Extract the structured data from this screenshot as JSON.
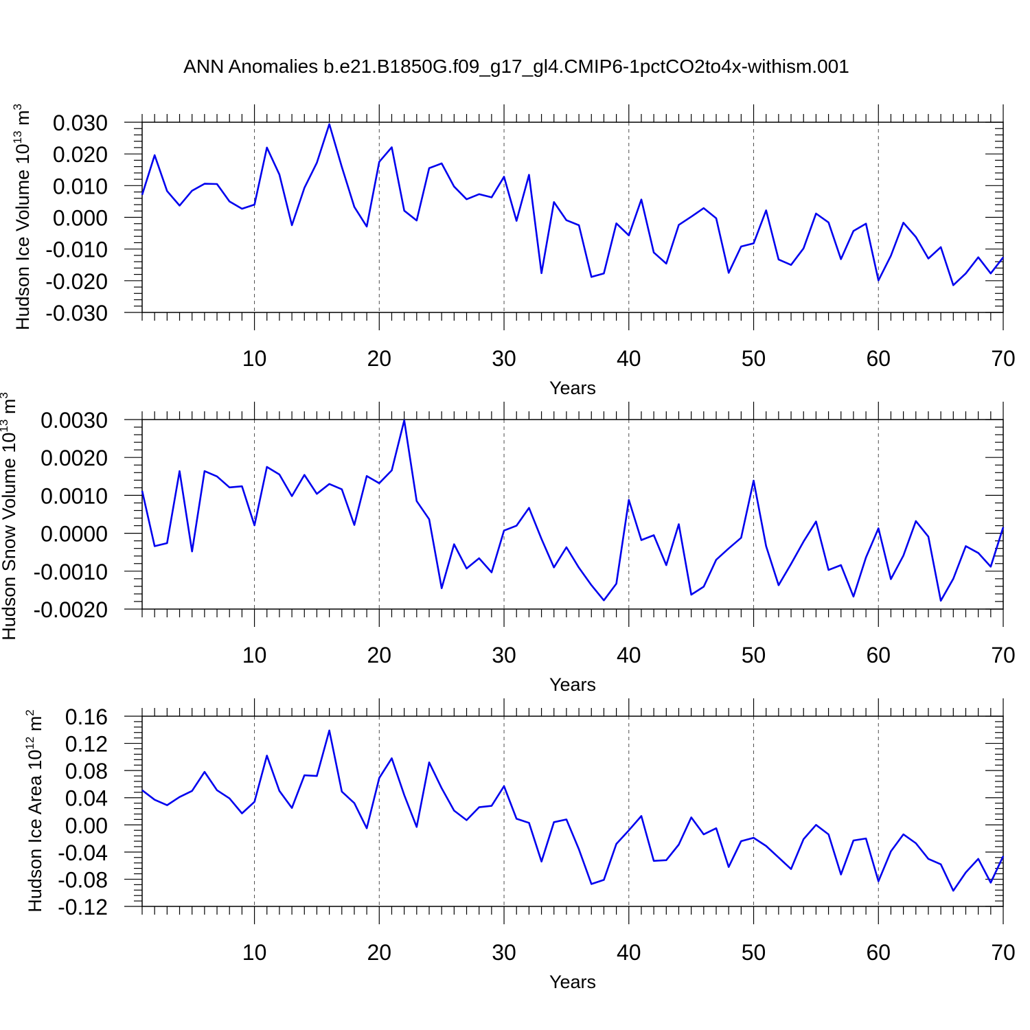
{
  "figure": {
    "title": "ANN Anomalies b.e21.B1850G.f09_g17_gl4.CMIP6-1pctCO2to4x-withism.001"
  },
  "chart_data": [
    {
      "type": "line",
      "xlabel": "Years",
      "ylabel": {
        "main": "Hudson Ice Volume 10",
        "exp": "13",
        "unit": " m",
        "unit_exp": "3"
      },
      "xlim": [
        1,
        70
      ],
      "ylim": [
        -0.03,
        0.03
      ],
      "xticks": [
        10,
        20,
        30,
        40,
        50,
        60,
        70
      ],
      "yticks": [
        0.03,
        0.02,
        0.01,
        0.0,
        -0.01,
        -0.02,
        -0.03
      ],
      "ytick_labels": [
        "0.030",
        "0.020",
        "0.010",
        "0.000",
        "-0.010",
        "-0.020",
        "-0.030"
      ],
      "grid": "vertical dashed at x ticks",
      "color": "#0000ee",
      "x": [
        1,
        2,
        3,
        4,
        5,
        6,
        7,
        8,
        9,
        10,
        11,
        12,
        13,
        14,
        15,
        16,
        17,
        18,
        19,
        20,
        21,
        22,
        23,
        24,
        25,
        26,
        27,
        28,
        29,
        30,
        31,
        32,
        33,
        34,
        35,
        36,
        37,
        38,
        39,
        40,
        41,
        42,
        43,
        44,
        45,
        46,
        47,
        48,
        49,
        50,
        51,
        52,
        53,
        54,
        55,
        56,
        57,
        58,
        59,
        60,
        61,
        62,
        63,
        64,
        65,
        66,
        67,
        68,
        69,
        70
      ],
      "values": [
        0.0071,
        0.0196,
        0.0083,
        0.0037,
        0.0084,
        0.0106,
        0.0105,
        0.005,
        0.0027,
        0.004,
        0.022,
        0.0135,
        -0.0025,
        0.0093,
        0.0172,
        0.0294,
        0.0159,
        0.0033,
        -0.0029,
        0.0175,
        0.0221,
        0.0021,
        -0.001,
        0.0155,
        0.017,
        0.0097,
        0.0057,
        0.0073,
        0.0063,
        0.0128,
        -0.0011,
        0.0134,
        -0.0176,
        0.0048,
        -0.0009,
        -0.0025,
        -0.0188,
        -0.0177,
        -0.0019,
        -0.0057,
        0.0056,
        -0.0111,
        -0.0146,
        -0.0024,
        0.0002,
        0.0029,
        -0.0003,
        -0.0175,
        -0.0092,
        -0.0082,
        0.0022,
        -0.0133,
        -0.015,
        -0.0098,
        0.0012,
        -0.0016,
        -0.0132,
        -0.0043,
        -0.002,
        -0.0199,
        -0.0121,
        -0.0017,
        -0.0062,
        -0.013,
        -0.0094,
        -0.0214,
        -0.0177,
        -0.0126,
        -0.0177,
        -0.0126
      ]
    },
    {
      "type": "line",
      "xlabel": "Years",
      "ylabel": {
        "main": "Hudson Snow Volume 10",
        "exp": "13",
        "unit": " m",
        "unit_exp": "3"
      },
      "xlim": [
        1,
        70
      ],
      "ylim": [
        -0.002,
        0.003
      ],
      "xticks": [
        10,
        20,
        30,
        40,
        50,
        60,
        70
      ],
      "yticks": [
        0.003,
        0.002,
        0.001,
        0.0,
        -0.001,
        -0.002
      ],
      "ytick_labels": [
        "0.0030",
        "0.0020",
        "0.0010",
        "0.0000",
        "-0.0010",
        "-0.0020"
      ],
      "grid": "vertical dashed at x ticks",
      "color": "#0000ee",
      "x": [
        1,
        2,
        3,
        4,
        5,
        6,
        7,
        8,
        9,
        10,
        11,
        12,
        13,
        14,
        15,
        16,
        17,
        18,
        19,
        20,
        21,
        22,
        23,
        24,
        25,
        26,
        27,
        28,
        29,
        30,
        31,
        32,
        33,
        34,
        35,
        36,
        37,
        38,
        39,
        40,
        41,
        42,
        43,
        44,
        45,
        46,
        47,
        48,
        49,
        50,
        51,
        52,
        53,
        54,
        55,
        56,
        57,
        58,
        59,
        60,
        61,
        62,
        63,
        64,
        65,
        66,
        67,
        68,
        69,
        70
      ],
      "values": [
        0.00112,
        -0.00034,
        -0.00026,
        0.00164,
        -0.00048,
        0.00164,
        0.0015,
        0.00121,
        0.00124,
        0.00021,
        0.00175,
        0.00155,
        0.00098,
        0.00154,
        0.00104,
        0.0013,
        0.00116,
        0.00022,
        0.00151,
        0.00132,
        0.00166,
        0.00298,
        0.00085,
        0.00037,
        -0.00145,
        -0.00029,
        -0.00093,
        -0.00066,
        -0.00103,
        7e-05,
        0.0002,
        0.00067,
        -0.00015,
        -0.0009,
        -0.00037,
        -0.00091,
        -0.00137,
        -0.00177,
        -0.00133,
        0.00088,
        -0.00018,
        -5e-05,
        -0.00084,
        0.00024,
        -0.00162,
        -0.00141,
        -0.0007,
        -0.0004,
        -0.00012,
        0.00139,
        -0.00034,
        -0.00137,
        -0.00081,
        -0.00022,
        0.00031,
        -0.00097,
        -0.00084,
        -0.00167,
        -0.00064,
        0.00013,
        -0.00121,
        -0.00059,
        0.00032,
        -9e-05,
        -0.00178,
        -0.0012,
        -0.00034,
        -0.00052,
        -0.00088,
        0.00016
      ]
    },
    {
      "type": "line",
      "xlabel": "Years",
      "ylabel": {
        "main": "Hudson Ice Area 10",
        "exp": "12",
        "unit": " m",
        "unit_exp": "2"
      },
      "xlim": [
        1,
        70
      ],
      "ylim": [
        -0.12,
        0.16
      ],
      "xticks": [
        10,
        20,
        30,
        40,
        50,
        60,
        70
      ],
      "yticks": [
        0.16,
        0.12,
        0.08,
        0.04,
        0.0,
        -0.04,
        -0.08,
        -0.12
      ],
      "ytick_labels": [
        "0.16",
        "0.12",
        "0.08",
        "0.04",
        "0.00",
        "-0.04",
        "-0.08",
        "-0.12"
      ],
      "grid": "vertical dashed at x ticks",
      "color": "#0000ee",
      "x": [
        1,
        2,
        3,
        4,
        5,
        6,
        7,
        8,
        9,
        10,
        11,
        12,
        13,
        14,
        15,
        16,
        17,
        18,
        19,
        20,
        21,
        22,
        23,
        24,
        25,
        26,
        27,
        28,
        29,
        30,
        31,
        32,
        33,
        34,
        35,
        36,
        37,
        38,
        39,
        40,
        41,
        42,
        43,
        44,
        45,
        46,
        47,
        48,
        49,
        50,
        51,
        52,
        53,
        54,
        55,
        56,
        57,
        58,
        59,
        60,
        61,
        62,
        63,
        64,
        65,
        66,
        67,
        68,
        69,
        70
      ],
      "values": [
        0.051,
        0.037,
        0.029,
        0.041,
        0.05,
        0.078,
        0.051,
        0.039,
        0.017,
        0.034,
        0.102,
        0.05,
        0.025,
        0.073,
        0.072,
        0.139,
        0.049,
        0.032,
        -0.005,
        0.069,
        0.098,
        0.044,
        -0.003,
        0.092,
        0.054,
        0.021,
        0.007,
        0.026,
        0.028,
        0.057,
        0.009,
        0.003,
        -0.054,
        0.004,
        0.008,
        -0.036,
        -0.087,
        -0.081,
        -0.028,
        -0.008,
        0.013,
        -0.053,
        -0.052,
        -0.029,
        0.011,
        -0.014,
        -0.005,
        -0.062,
        -0.024,
        -0.019,
        -0.031,
        -0.048,
        -0.065,
        -0.021,
        0.0,
        -0.014,
        -0.073,
        -0.023,
        -0.02,
        -0.083,
        -0.039,
        -0.014,
        -0.027,
        -0.05,
        -0.058,
        -0.097,
        -0.07,
        -0.05,
        -0.085,
        -0.046
      ]
    }
  ]
}
